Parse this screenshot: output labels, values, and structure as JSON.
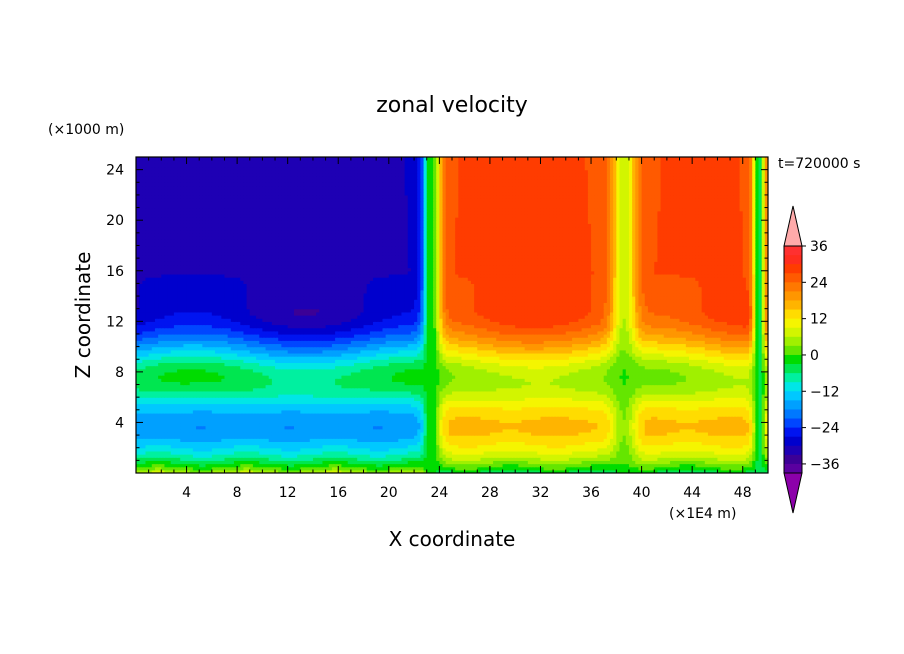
{
  "chart_data": {
    "type": "heatmap",
    "title": "zonal velocity",
    "xlabel": "X coordinate",
    "ylabel": "Z coordinate",
    "x_unit": "(×1E4 m)",
    "y_unit": "(×1000 m)",
    "time_label": "t=720000 s",
    "x_ticks": [
      4,
      8,
      12,
      16,
      20,
      24,
      28,
      32,
      36,
      40,
      44,
      48
    ],
    "x_tick_labels": [
      "4",
      "8",
      "12",
      "16",
      "20",
      "24",
      "28",
      "32",
      "36",
      "40",
      "44",
      "48"
    ],
    "y_ticks": [
      4,
      8,
      12,
      16,
      20,
      24
    ],
    "y_tick_labels": [
      "4",
      "8",
      "12",
      "16",
      "20",
      "24"
    ],
    "xlim": [
      0,
      50
    ],
    "ylim": [
      0,
      25
    ],
    "colorbar": {
      "levels": [
        -42,
        -39,
        -36,
        -33,
        -30,
        -27,
        -24,
        -21,
        -18,
        -15,
        -12,
        -9,
        -6,
        -3,
        0,
        3,
        6,
        9,
        12,
        15,
        18,
        21,
        24,
        27,
        30,
        33,
        36,
        39,
        42
      ],
      "tick_values": [
        36,
        24,
        12,
        0,
        -12,
        -24,
        -36
      ],
      "tick_labels": [
        "36",
        "24",
        "12",
        "0",
        "−12",
        "−24",
        "−36"
      ],
      "colors": [
        "#8c00aa",
        "#5a00a0",
        "#3c0096",
        "#1e00b4",
        "#0000cd",
        "#0014f0",
        "#0046ff",
        "#0078ff",
        "#00a0ff",
        "#00c8ff",
        "#00e6e6",
        "#00f0a0",
        "#00e650",
        "#00dc00",
        "#64e600",
        "#a0f000",
        "#d2f500",
        "#f5f500",
        "#ffdc00",
        "#ffb400",
        "#ff9600",
        "#ff7800",
        "#ff5a00",
        "#ff3c00",
        "#ff2d1e",
        "#ff3030",
        "#ffaaaa"
      ]
    }
  }
}
